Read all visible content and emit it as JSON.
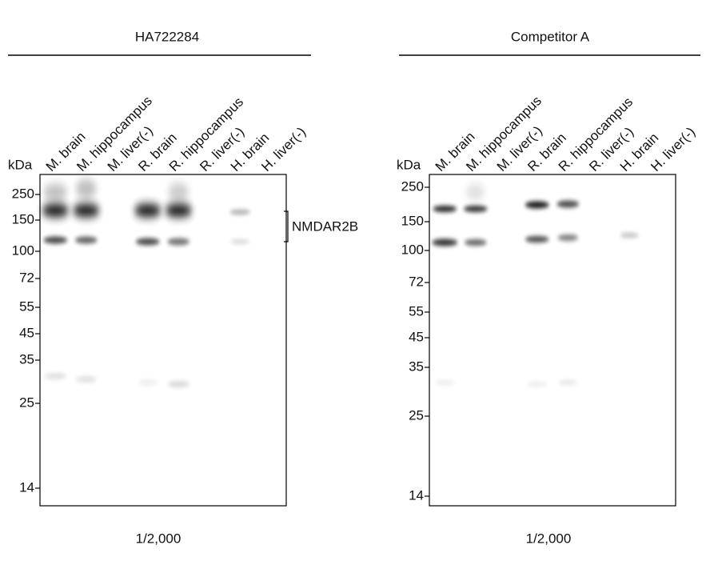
{
  "panels": [
    {
      "title": "HA722284",
      "unit": "kDa",
      "lanes": [
        "M. brain",
        "M. hippocampus",
        "M. liver(-)",
        "R. brain",
        "R. hippocampus",
        "R. liver(-)",
        "H. brain",
        "H. liver(-)"
      ],
      "markers": [
        250,
        150,
        100,
        72,
        55,
        45,
        35,
        25,
        14
      ],
      "annotation": "NMDAR2B",
      "dilution": "1/2,000"
    },
    {
      "title": "Competitor A",
      "unit": "kDa",
      "lanes": [
        "M. brain",
        "M. hippocampus",
        "M. liver(-)",
        "R. brain",
        "R. hippocampus",
        "R. liver(-)",
        "H. brain",
        "H. liver(-)"
      ],
      "markers": [
        250,
        150,
        100,
        72,
        55,
        45,
        35,
        25,
        14
      ],
      "dilution": "1/2,000"
    }
  ]
}
